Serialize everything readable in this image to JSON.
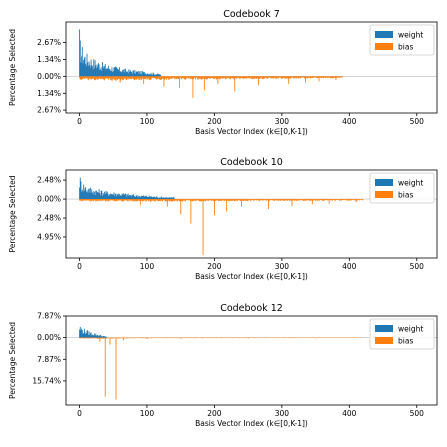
{
  "colors": {
    "weight": "#1f77b4",
    "bias": "#ff7f0e",
    "axis": "#000000",
    "zero_line": "#bbbbbb"
  },
  "chart_data": [
    {
      "type": "area",
      "title": "Codebook 7",
      "xlabel": "Basis Vector Index (k∈[0,K-1])",
      "ylabel": "Percentage Selected",
      "xlim": [
        -20,
        530
      ],
      "ylim": [
        -2.9,
        4.3
      ],
      "xticks": [
        0,
        100,
        200,
        300,
        400,
        500
      ],
      "yticks": [
        {
          "value": 2.67,
          "label": "2.67%"
        },
        {
          "value": 1.34,
          "label": "1.34%"
        },
        {
          "value": 0.0,
          "label": "0.00%"
        },
        {
          "value": -1.34,
          "label": "1.34%"
        },
        {
          "value": -2.67,
          "label": "2.67%"
        }
      ],
      "legend": {
        "position": "top-right",
        "entries": [
          "weight",
          "bias"
        ]
      },
      "series": [
        {
          "name": "weight",
          "direction": "up",
          "extent": 120,
          "profile": [
            [
              0,
              4.0
            ],
            [
              1,
              3.0
            ],
            [
              3,
              2.6
            ],
            [
              6,
              2.2
            ],
            [
              10,
              1.9
            ],
            [
              20,
              1.5
            ],
            [
              35,
              1.1
            ],
            [
              50,
              0.85
            ],
            [
              70,
              0.6
            ],
            [
              90,
              0.45
            ],
            [
              110,
              0.3
            ],
            [
              120,
              0.2
            ]
          ]
        },
        {
          "name": "bias",
          "direction": "down",
          "extent": 390,
          "profile": [
            [
              0,
              0.3
            ],
            [
              50,
              0.35
            ],
            [
              100,
              0.3
            ],
            [
              200,
              0.25
            ],
            [
              300,
              0.2
            ],
            [
              390,
              0.15
            ]
          ],
          "spikes": [
            [
              168,
              1.7
            ],
            [
              185,
              1.1
            ],
            [
              230,
              1.2
            ],
            [
              148,
              0.9
            ],
            [
              265,
              0.7
            ],
            [
              310,
              0.6
            ],
            [
              335,
              0.5
            ],
            [
              355,
              0.4
            ],
            [
              205,
              0.6
            ],
            [
              125,
              0.8
            ],
            [
              95,
              0.6
            ],
            [
              60,
              0.5
            ],
            [
              380,
              0.3
            ]
          ]
        }
      ]
    },
    {
      "type": "area",
      "title": "Codebook 10",
      "xlabel": "Basis Vector Index (k∈[0,K-1])",
      "ylabel": "Percentage Selected",
      "xlim": [
        -20,
        530
      ],
      "ylim": [
        -7.7,
        3.8
      ],
      "xticks": [
        0,
        100,
        200,
        300,
        400,
        500
      ],
      "yticks": [
        {
          "value": 2.48,
          "label": "2.48%"
        },
        {
          "value": 0.0,
          "label": "0.00%"
        },
        {
          "value": -2.48,
          "label": "2.48%"
        },
        {
          "value": -4.95,
          "label": "4.95%"
        }
      ],
      "legend": {
        "position": "top-right",
        "entries": [
          "weight",
          "bias"
        ]
      },
      "series": [
        {
          "name": "weight",
          "direction": "up",
          "extent": 140,
          "profile": [
            [
              0,
              3.5
            ],
            [
              2,
              2.8
            ],
            [
              5,
              2.3
            ],
            [
              10,
              1.9
            ],
            [
              20,
              1.5
            ],
            [
              40,
              1.1
            ],
            [
              60,
              0.9
            ],
            [
              80,
              0.65
            ],
            [
              100,
              0.5
            ],
            [
              120,
              0.35
            ],
            [
              140,
              0.25
            ]
          ]
        },
        {
          "name": "bias",
          "direction": "down",
          "extent": 420,
          "profile": [
            [
              0,
              0.3
            ],
            [
              100,
              0.35
            ],
            [
              200,
              0.3
            ],
            [
              300,
              0.25
            ],
            [
              420,
              0.2
            ]
          ],
          "spikes": [
            [
              183,
              7.3
            ],
            [
              165,
              3.2
            ],
            [
              150,
              2.0
            ],
            [
              200,
              2.1
            ],
            [
              218,
              1.6
            ],
            [
              280,
              1.3
            ],
            [
              240,
              1.0
            ],
            [
              130,
              1.0
            ],
            [
              90,
              0.8
            ],
            [
              315,
              0.9
            ],
            [
              345,
              0.7
            ],
            [
              370,
              0.6
            ],
            [
              410,
              0.4
            ]
          ]
        }
      ]
    },
    {
      "type": "area",
      "title": "Codebook 12",
      "xlabel": "Basis Vector Index (k∈[0,K-1])",
      "ylabel": "Percentage Selected",
      "xlim": [
        -20,
        530
      ],
      "ylim": [
        -24.5,
        7.87
      ],
      "xticks": [
        0,
        100,
        200,
        300,
        400,
        500
      ],
      "yticks": [
        {
          "value": 7.87,
          "label": "7.87%"
        },
        {
          "value": 0.0,
          "label": "0.00%"
        },
        {
          "value": -7.87,
          "label": "7.87%"
        },
        {
          "value": -15.74,
          "label": "15.74%"
        }
      ],
      "legend": {
        "position": "top-right",
        "entries": [
          "weight",
          "bias"
        ]
      },
      "series": [
        {
          "name": "weight",
          "direction": "up",
          "extent": 40,
          "profile": [
            [
              0,
              5.0
            ],
            [
              3,
              4.0
            ],
            [
              8,
              3.2
            ],
            [
              15,
              2.3
            ],
            [
              25,
              1.5
            ],
            [
              35,
              0.8
            ],
            [
              40,
              0.3
            ]
          ]
        },
        {
          "name": "bias",
          "direction": "down",
          "extent": 420,
          "profile": [
            [
              0,
              0.3
            ],
            [
              40,
              0.45
            ],
            [
              80,
              0.25
            ],
            [
              200,
              0.2
            ],
            [
              420,
              0.15
            ]
          ],
          "spikes": [
            [
              38,
              21.5
            ],
            [
              54,
              22.5
            ],
            [
              45,
              2.5
            ],
            [
              30,
              1.5
            ],
            [
              65,
              1.0
            ],
            [
              100,
              0.5
            ],
            [
              150,
              0.4
            ],
            [
              250,
              0.3
            ],
            [
              350,
              0.3
            ]
          ]
        }
      ]
    }
  ]
}
